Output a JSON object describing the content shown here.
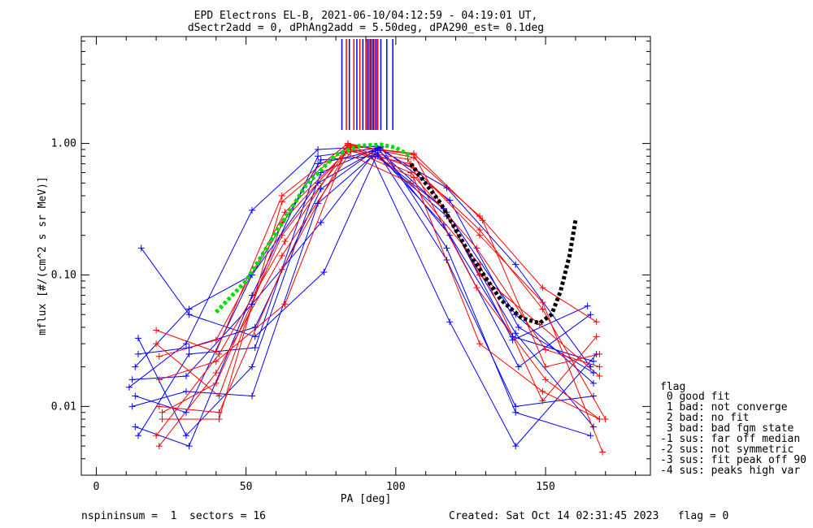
{
  "title_line1": "EPD Electrons EL-B, 2021-06-10/04:12:59 - 04:19:01 UT,",
  "title_line2": "dSectr2add = 0, dPhAng2add = 5.50deg, dPA290_est=   0.1deg",
  "footer_left": "nspininsum =  1  sectors = 16",
  "footer_right": "Created: Sat Oct 14 02:31:45 2023   flag = 0",
  "legend": {
    "title": "flag",
    "items": [
      " 0 good fit",
      " 1 bad: not converge",
      " 2 bad: no fit",
      " 3 bad: bad fgm state",
      "-1 sus: far off median",
      "-2 sus: not symmetric",
      "-3 sus: fit peak off 90",
      "-4 sus: peaks high var"
    ]
  },
  "colors": {
    "blue": "#0000ff",
    "red": "#ff0000",
    "green": "#00dd00",
    "black": "#000000"
  },
  "chart_data": {
    "type": "line",
    "xlabel": "PA [deg]",
    "ylabel": "mflux [#/(cm^2 s sr MeV)]",
    "xlim": [
      -5,
      185
    ],
    "ylim": [
      0.003,
      6.5
    ],
    "yscale": "log",
    "xticks": [
      0,
      50,
      100,
      150
    ],
    "yticks": [
      0.01,
      0.1,
      1.0
    ],
    "ytick_labels": [
      "0.01",
      "0.10",
      "1.00"
    ],
    "series": [
      {
        "color": "blue",
        "x": [
          11,
          30,
          52,
          74,
          93,
          117,
          140,
          165
        ],
        "y": [
          0.014,
          0.03,
          0.31,
          0.9,
          0.95,
          0.46,
          0.12,
          0.02
        ]
      },
      {
        "color": "blue",
        "x": [
          12,
          30,
          52,
          74,
          93,
          117,
          140,
          166
        ],
        "y": [
          0.01,
          0.013,
          0.012,
          0.35,
          0.83,
          0.28,
          0.036,
          0.007
        ]
      },
      {
        "color": "blue",
        "x": [
          13,
          31,
          52,
          74,
          94,
          117,
          140,
          166
        ],
        "y": [
          0.02,
          0.055,
          0.1,
          0.5,
          0.9,
          0.3,
          0.05,
          0.015
        ]
      },
      {
        "color": "blue",
        "x": [
          14,
          31,
          53,
          75,
          94,
          118,
          139,
          166
        ],
        "y": [
          0.025,
          0.028,
          0.04,
          0.45,
          0.92,
          0.2,
          0.034,
          0.022
        ]
      },
      {
        "color": "blue",
        "x": [
          14,
          30,
          52,
          75,
          95,
          117,
          140,
          165
        ],
        "y": [
          0.033,
          0.006,
          0.02,
          0.6,
          0.95,
          0.16,
          0.009,
          0.006
        ]
      },
      {
        "color": "blue",
        "x": [
          13,
          31,
          52,
          74,
          95,
          118,
          141,
          166
        ],
        "y": [
          0.007,
          0.005,
          0.07,
          0.8,
          0.93,
          0.37,
          0.04,
          0.018
        ]
      },
      {
        "color": "blue",
        "x": [
          12,
          30,
          52,
          75,
          92,
          118,
          140,
          167
        ],
        "y": [
          0.016,
          0.017,
          0.06,
          0.25,
          0.8,
          0.044,
          0.005,
          0.025
        ]
      },
      {
        "color": "blue",
        "x": [
          14,
          31,
          53,
          74,
          93,
          116,
          141,
          165
        ],
        "y": [
          0.006,
          0.025,
          0.028,
          0.7,
          0.88,
          0.24,
          0.02,
          0.05
        ]
      },
      {
        "color": "blue",
        "x": [
          15,
          31,
          53,
          76,
          94,
          117,
          140,
          166
        ],
        "y": [
          0.16,
          0.05,
          0.034,
          0.105,
          0.85,
          0.13,
          0.01,
          0.012
        ]
      },
      {
        "color": "blue",
        "x": [
          13,
          30,
          52,
          75,
          94,
          116,
          139,
          164
        ],
        "y": [
          0.012,
          0.009,
          0.1,
          0.75,
          0.8,
          0.32,
          0.032,
          0.058
        ]
      },
      {
        "color": "red",
        "x": [
          20,
          40,
          62,
          84,
          106,
          128,
          149,
          167
        ],
        "y": [
          0.038,
          0.026,
          0.4,
          1.0,
          0.78,
          0.28,
          0.08,
          0.044
        ]
      },
      {
        "color": "red",
        "x": [
          21,
          41,
          62,
          84,
          106,
          128,
          149,
          168
        ],
        "y": [
          0.01,
          0.009,
          0.11,
          0.92,
          0.55,
          0.03,
          0.013,
          0.008
        ]
      },
      {
        "color": "red",
        "x": [
          21,
          40,
          63,
          85,
          105,
          127,
          150,
          168
        ],
        "y": [
          0.024,
          0.032,
          0.3,
          0.93,
          0.6,
          0.16,
          0.027,
          0.02
        ]
      },
      {
        "color": "red",
        "x": [
          20,
          41,
          63,
          84,
          106,
          128,
          148,
          168
        ],
        "y": [
          0.006,
          0.025,
          0.18,
          0.98,
          0.82,
          0.1,
          0.042,
          0.017
        ]
      },
      {
        "color": "red",
        "x": [
          21,
          40,
          62,
          85,
          105,
          128,
          149,
          169
        ],
        "y": [
          0.005,
          0.018,
          0.14,
          0.87,
          0.7,
          0.2,
          0.062,
          0.0045
        ]
      },
      {
        "color": "red",
        "x": [
          22,
          41,
          62,
          84,
          106,
          129,
          150,
          168
        ],
        "y": [
          0.008,
          0.008,
          0.36,
          0.96,
          0.84,
          0.26,
          0.02,
          0.025
        ]
      },
      {
        "color": "red",
        "x": [
          21,
          40,
          63,
          83,
          105,
          128,
          149,
          167
        ],
        "y": [
          0.016,
          0.022,
          0.06,
          0.85,
          0.5,
          0.12,
          0.011,
          0.034
        ]
      },
      {
        "color": "red",
        "x": [
          20,
          41,
          62,
          84,
          104,
          127,
          150,
          168
        ],
        "y": [
          0.03,
          0.012,
          0.25,
          0.9,
          0.76,
          0.08,
          0.016,
          0.008
        ]
      },
      {
        "color": "red",
        "x": [
          22,
          40,
          62,
          85,
          106,
          128,
          149,
          170
        ],
        "y": [
          0.009,
          0.015,
          0.2,
          0.95,
          0.65,
          0.22,
          0.055,
          0.008
        ]
      }
    ],
    "fit_green": {
      "color": "green",
      "x": [
        40,
        50,
        60,
        70,
        80,
        88,
        95,
        100,
        105
      ],
      "y": [
        0.052,
        0.09,
        0.21,
        0.48,
        0.82,
        0.96,
        0.98,
        0.93,
        0.8
      ]
    },
    "fit_black": {
      "color": "black",
      "x": [
        105,
        115,
        125,
        135,
        142,
        148,
        152,
        155,
        158,
        160
      ],
      "y": [
        0.7,
        0.35,
        0.14,
        0.065,
        0.047,
        0.043,
        0.05,
        0.075,
        0.14,
        0.26
      ]
    },
    "vertical_lines": {
      "blue_x": [
        82,
        84.5,
        87,
        89,
        90.5,
        91.5,
        92.5,
        93.5,
        95,
        97,
        99
      ],
      "red_x": [
        83.5,
        86,
        88,
        90,
        91,
        92,
        93,
        94
      ]
    }
  }
}
